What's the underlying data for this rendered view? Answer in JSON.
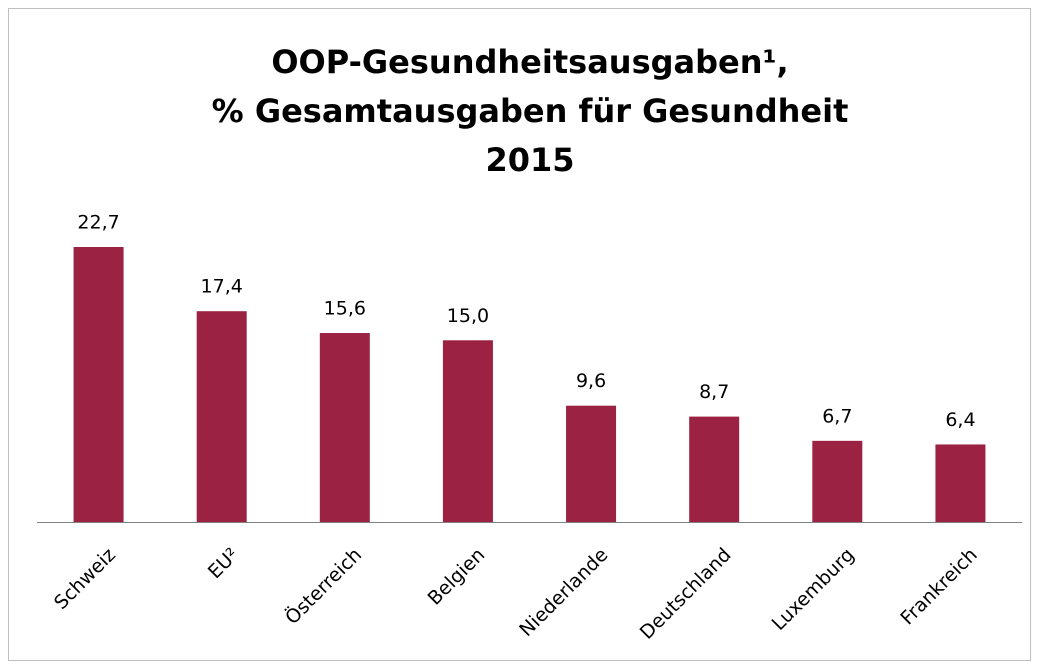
{
  "chart_data": {
    "type": "bar",
    "title": [
      "OOP-Gesundheitsausgaben¹,",
      "% Gesamtausgaben für Gesundheit",
      "2015"
    ],
    "categories": [
      "Schweiz",
      "EU²",
      "Österreich",
      "Belgien",
      "Niederlande",
      "Deutschland",
      "Luxemburg",
      "Frankreich"
    ],
    "values": [
      22.7,
      17.4,
      15.6,
      15.0,
      9.6,
      8.7,
      6.7,
      6.4
    ],
    "value_labels": [
      "22,7",
      "17,4",
      "15,6",
      "15,0",
      "9,6",
      "8,7",
      "6,7",
      "6,4"
    ],
    "color": "#9b2242"
  }
}
